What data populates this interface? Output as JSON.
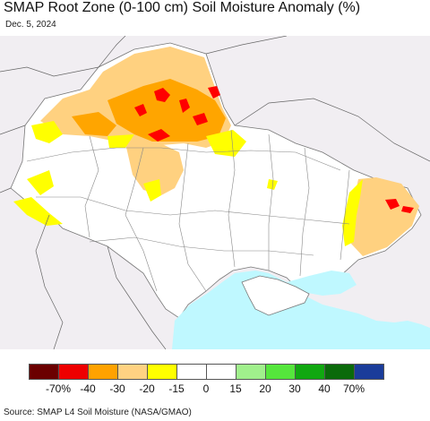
{
  "header": {
    "title": "SMAP Root Zone (0-100 cm) Soil Moisture Anomaly (%)",
    "date": "Dec. 5, 2024"
  },
  "map": {
    "colors": {
      "land_background": "#f1eef2",
      "neutral_white": "#ffffff",
      "sea": "#bff8ff",
      "border": "#777777",
      "dry_light": "#ffd180",
      "dry_medium": "#ffa500",
      "dry_strong": "#ff0000",
      "dry_yellow": "#ffff00"
    }
  },
  "legend": {
    "colors": [
      "#6b0000",
      "#ee0000",
      "#ffa200",
      "#ffd282",
      "#ffff00",
      "#ffffff",
      "#ffffff",
      "#a0f08c",
      "#55e63c",
      "#10a810",
      "#0a6a0a",
      "#1a3c9a"
    ],
    "tick_labels": [
      "-70%",
      "-40",
      "-30",
      "-20",
      "-15",
      "0",
      "15",
      "20",
      "30",
      "40",
      "70%"
    ]
  },
  "footer": {
    "source": "Source: SMAP L4 Soil Moisture (NASA/GMAO)"
  }
}
